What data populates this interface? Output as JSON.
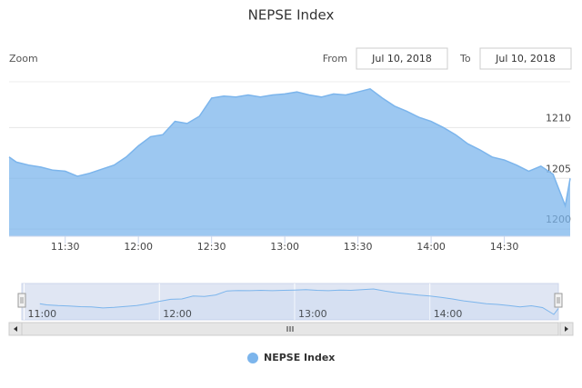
{
  "chart_data": {
    "type": "area",
    "title": "NEPSE Index",
    "zoom_label": "Zoom",
    "from_label": "From",
    "from_date": "Jul 10, 2018",
    "to_label": "To",
    "to_date": "Jul 10, 2018",
    "x": [
      "11:07",
      "11:10",
      "11:15",
      "11:20",
      "11:25",
      "11:30",
      "11:35",
      "11:40",
      "11:45",
      "11:50",
      "11:55",
      "12:00",
      "12:05",
      "12:10",
      "12:15",
      "12:20",
      "12:25",
      "12:30",
      "12:35",
      "12:40",
      "12:45",
      "12:50",
      "12:55",
      "13:00",
      "13:05",
      "13:10",
      "13:15",
      "13:20",
      "13:25",
      "13:30",
      "13:35",
      "13:40",
      "13:45",
      "13:50",
      "13:55",
      "14:00",
      "14:05",
      "14:10",
      "14:15",
      "14:20",
      "14:25",
      "14:30",
      "14:35",
      "14:40",
      "14:45",
      "14:50",
      "14:55",
      "14:57"
    ],
    "series": [
      {
        "name": "NEPSE Index",
        "color": "#7cb5ec",
        "values": [
          1207.1,
          1206.6,
          1206.3,
          1206.1,
          1205.8,
          1205.7,
          1205.2,
          1205.5,
          1205.9,
          1206.3,
          1207.1,
          1208.2,
          1209.1,
          1209.3,
          1210.6,
          1210.4,
          1211.1,
          1212.9,
          1213.1,
          1213.0,
          1213.2,
          1213.0,
          1213.2,
          1213.3,
          1213.5,
          1213.2,
          1213.0,
          1213.3,
          1213.2,
          1213.5,
          1213.8,
          1212.9,
          1212.1,
          1211.6,
          1211.0,
          1210.6,
          1210.0,
          1209.3,
          1208.4,
          1207.8,
          1207.1,
          1206.8,
          1206.3,
          1205.7,
          1206.2,
          1205.4,
          1202.3,
          1205.0
        ]
      }
    ],
    "xlim": [
      "11:07",
      "14:57"
    ],
    "xticks": [
      "11:30",
      "12:00",
      "12:30",
      "13:00",
      "13:30",
      "14:00",
      "14:30"
    ],
    "ylim": [
      1199.3,
      1214.5
    ],
    "yticks": [
      1200,
      1205,
      1210
    ],
    "grid": true,
    "navigator": {
      "xlim": [
        "10:59",
        "14:57"
      ],
      "xticks": [
        "11:00",
        "12:00",
        "13:00",
        "14:00"
      ]
    }
  }
}
